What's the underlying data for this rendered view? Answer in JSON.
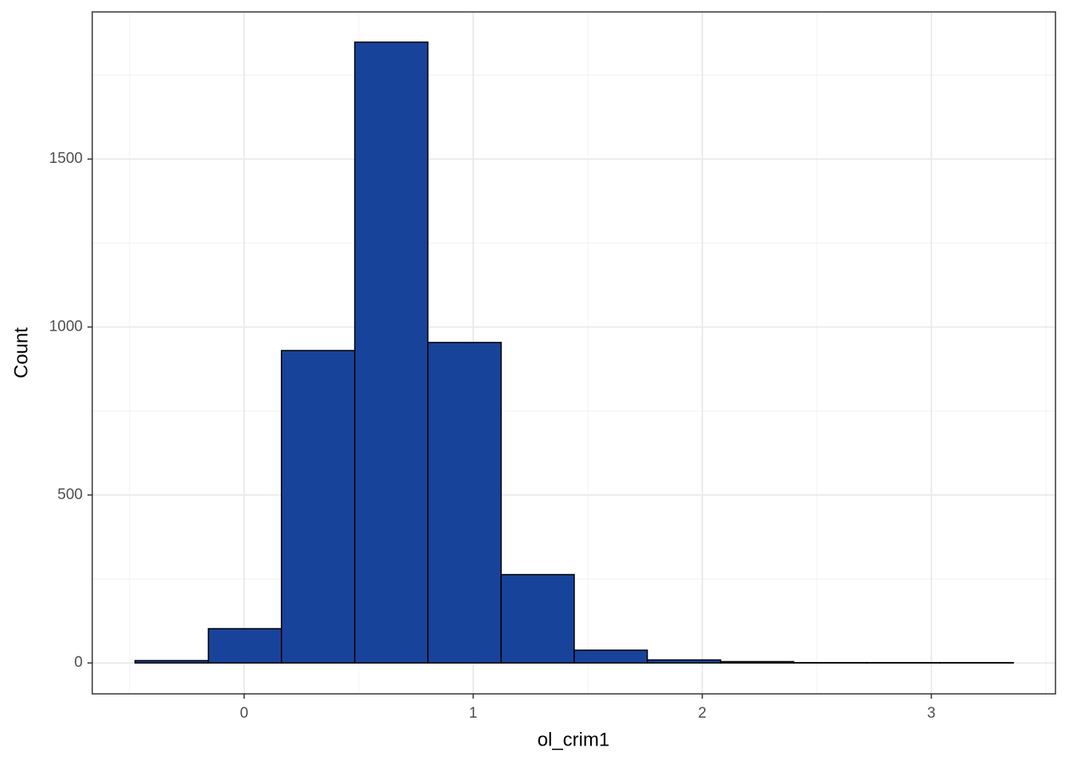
{
  "chart_data": {
    "type": "histogram",
    "x_label": "ol_crim1",
    "y_label": "Count",
    "bins": [
      -0.476,
      -0.156,
      0.163,
      0.483,
      0.802,
      1.122,
      1.441,
      1.76,
      2.08,
      2.399,
      2.719,
      3.038,
      3.358
    ],
    "values": [
      7,
      102,
      930,
      1848,
      954,
      263,
      38,
      9,
      4,
      1,
      1,
      1
    ],
    "color": "#18439a",
    "xlim": [
      -0.663,
      3.542
    ],
    "ylim": [
      -92,
      1938
    ],
    "xticks": [
      0,
      1,
      2,
      3
    ],
    "yticks": [
      0,
      500,
      1000,
      1500
    ],
    "grid": true
  }
}
